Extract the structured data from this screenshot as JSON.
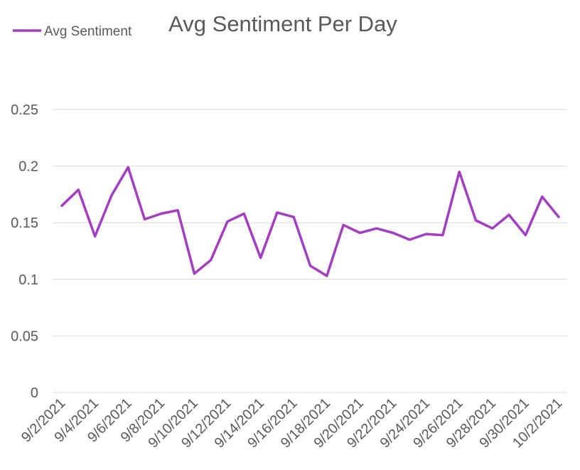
{
  "chart_data": {
    "type": "line",
    "title": "Avg Sentiment Per Day",
    "xlabel": "",
    "ylabel": "",
    "ylim": [
      0,
      0.25
    ],
    "grid": true,
    "legend_position": "top-left",
    "yticks": [
      "0",
      "0.05",
      "0.1",
      "0.15",
      "0.2",
      "0.25"
    ],
    "ytick_values": [
      0,
      0.05,
      0.1,
      0.15,
      0.2,
      0.25
    ],
    "x": [
      "9/2/2021",
      "9/3/2021",
      "9/4/2021",
      "9/5/2021",
      "9/6/2021",
      "9/7/2021",
      "9/8/2021",
      "9/9/2021",
      "9/10/2021",
      "9/11/2021",
      "9/12/2021",
      "9/13/2021",
      "9/14/2021",
      "9/15/2021",
      "9/16/2021",
      "9/17/2021",
      "9/18/2021",
      "9/19/2021",
      "9/20/2021",
      "9/21/2021",
      "9/22/2021",
      "9/23/2021",
      "9/24/2021",
      "9/25/2021",
      "9/26/2021",
      "9/27/2021",
      "9/28/2021",
      "9/29/2021",
      "9/30/2021",
      "10/1/2021",
      "10/2/2021"
    ],
    "xtick_labels": [
      "9/2/2021",
      "9/4/2021",
      "9/6/2021",
      "9/8/2021",
      "9/10/2021",
      "9/12/2021",
      "9/14/2021",
      "9/16/2021",
      "9/18/2021",
      "9/20/2021",
      "9/22/2021",
      "9/24/2021",
      "9/26/2021",
      "9/28/2021",
      "9/30/2021",
      "10/2/2021"
    ],
    "series": [
      {
        "name": "Avg Sentiment",
        "color": "#a43cc4",
        "values": [
          0.165,
          0.179,
          0.138,
          0.174,
          0.199,
          0.153,
          0.158,
          0.161,
          0.105,
          0.117,
          0.151,
          0.158,
          0.119,
          0.159,
          0.155,
          0.112,
          0.103,
          0.148,
          0.141,
          0.145,
          0.141,
          0.135,
          0.14,
          0.139,
          0.195,
          0.152,
          0.145,
          0.157,
          0.139,
          0.173,
          0.155
        ]
      }
    ]
  }
}
